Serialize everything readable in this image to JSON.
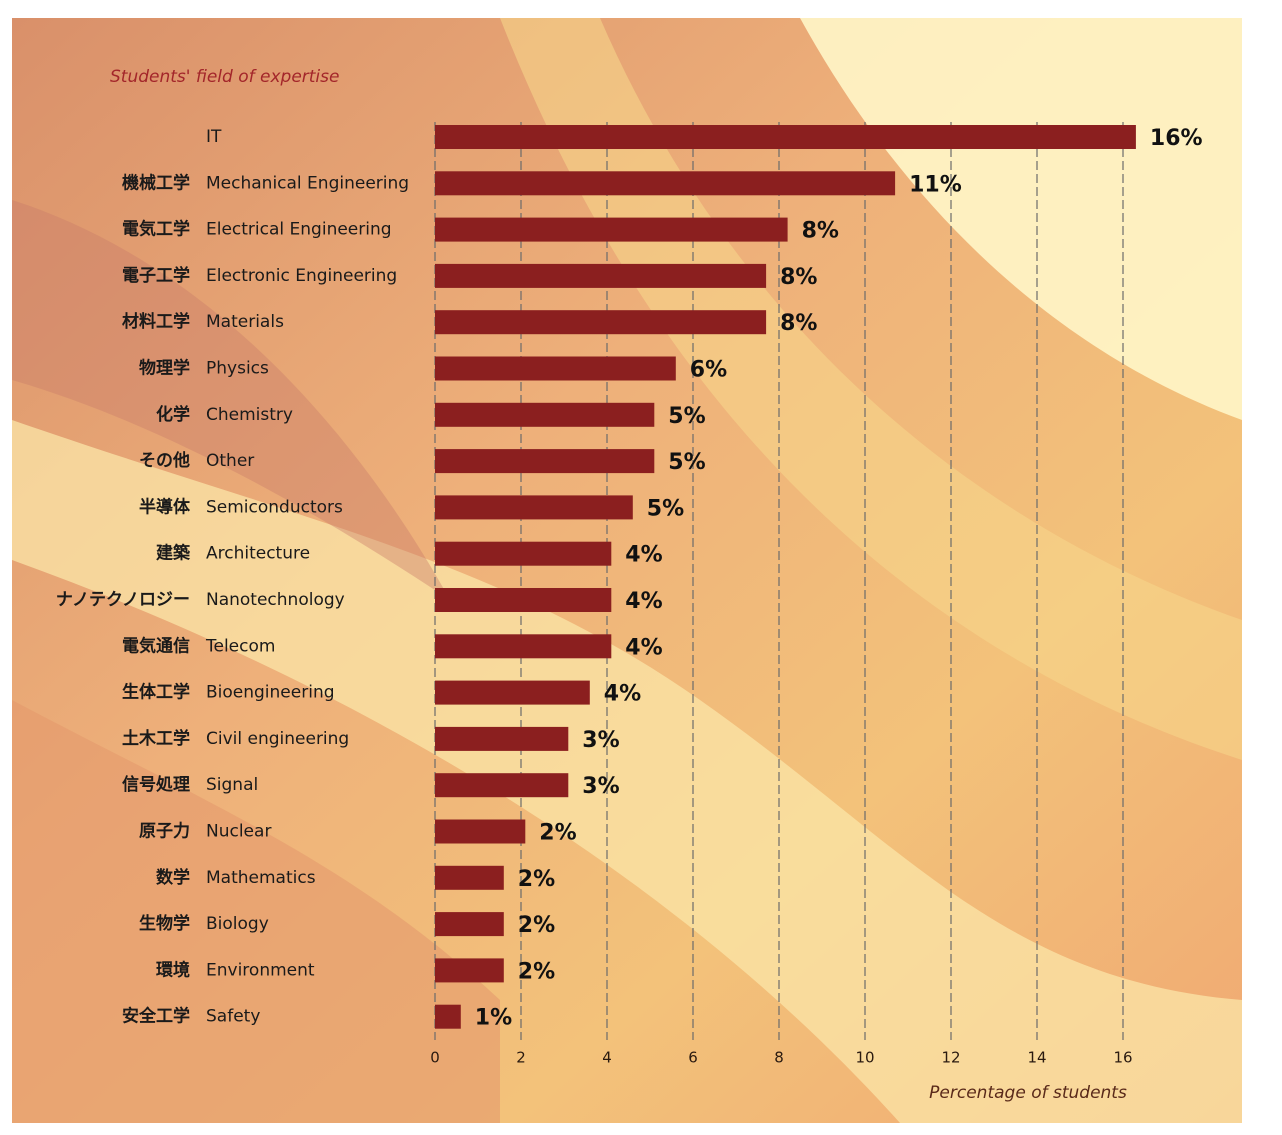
{
  "chart_data": {
    "type": "hbar",
    "title": "Students' field of expertise",
    "x_label": "Percentage of students",
    "categories": [
      "IT",
      "Mechanical Engineering",
      "Electrical Engineering",
      "Electronic Engineering",
      "Materials",
      "Physics",
      "Chemistry",
      "Other",
      "Semiconductors",
      "Architecture",
      "Nanotechnology",
      "Telecom",
      "Bioengineering",
      "Civil engineering",
      "Signal",
      "Nuclear",
      "Mathematics",
      "Biology",
      "Environment",
      "Safety"
    ],
    "categories_ja": [
      null,
      "機械工学",
      "電気工学",
      "電子工学",
      "材料工学",
      "物理学",
      "化学",
      "その他",
      "半導体",
      "建築",
      "ナノテクノロジー",
      "電気通信",
      "生体工学",
      "土木工学",
      "信号処理",
      "原子力",
      "数学",
      "生物学",
      "環境",
      "安全工学"
    ],
    "values": [
      16.3,
      10.7,
      8.2,
      7.7,
      7.7,
      5.6,
      5.1,
      5.1,
      4.6,
      4.1,
      4.1,
      4.1,
      3.6,
      3.1,
      3.1,
      2.1,
      1.6,
      1.6,
      1.6,
      0.6
    ],
    "value_labels": [
      "16%",
      "11%",
      "8%",
      "8%",
      "8%",
      "6%",
      "5%",
      "5%",
      "5%",
      "4%",
      "4%",
      "4%",
      "4%",
      "3%",
      "3%",
      "2%",
      "2%",
      "2%",
      "2%",
      "1%"
    ],
    "color": "#8b1f1f",
    "xlim": [
      0,
      18
    ],
    "xticks": [
      0,
      2,
      4,
      6,
      8,
      10,
      12,
      14,
      16
    ],
    "grid": true
  }
}
